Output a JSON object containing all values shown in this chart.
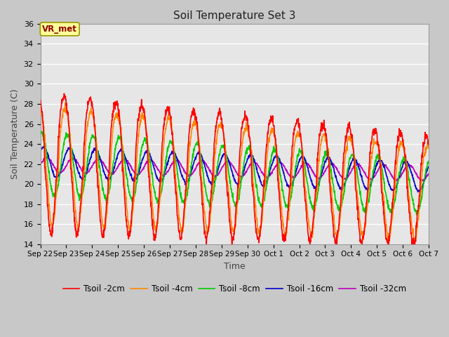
{
  "title": "Soil Temperature Set 3",
  "xlabel": "Time",
  "ylabel": "Soil Temperature (C)",
  "ylim": [
    14,
    36
  ],
  "yticks": [
    14,
    16,
    18,
    20,
    22,
    24,
    26,
    28,
    30,
    32,
    34,
    36
  ],
  "x_tick_labels": [
    "Sep 22",
    "Sep 23",
    "Sep 24",
    "Sep 25",
    "Sep 26",
    "Sep 27",
    "Sep 28",
    "Sep 29",
    "Sep 30",
    "Oct 1",
    "Oct 2",
    "Oct 3",
    "Oct 4",
    "Oct 5",
    "Oct 6",
    "Oct 7"
  ],
  "annotation_text": "VR_met",
  "series": {
    "Tsoil -2cm": {
      "color": "#ff0000",
      "lw": 1.2
    },
    "Tsoil -4cm": {
      "color": "#ff8800",
      "lw": 1.2
    },
    "Tsoil -8cm": {
      "color": "#00cc00",
      "lw": 1.2
    },
    "Tsoil -16cm": {
      "color": "#0000cc",
      "lw": 1.2
    },
    "Tsoil -32cm": {
      "color": "#bb00bb",
      "lw": 1.2
    }
  }
}
